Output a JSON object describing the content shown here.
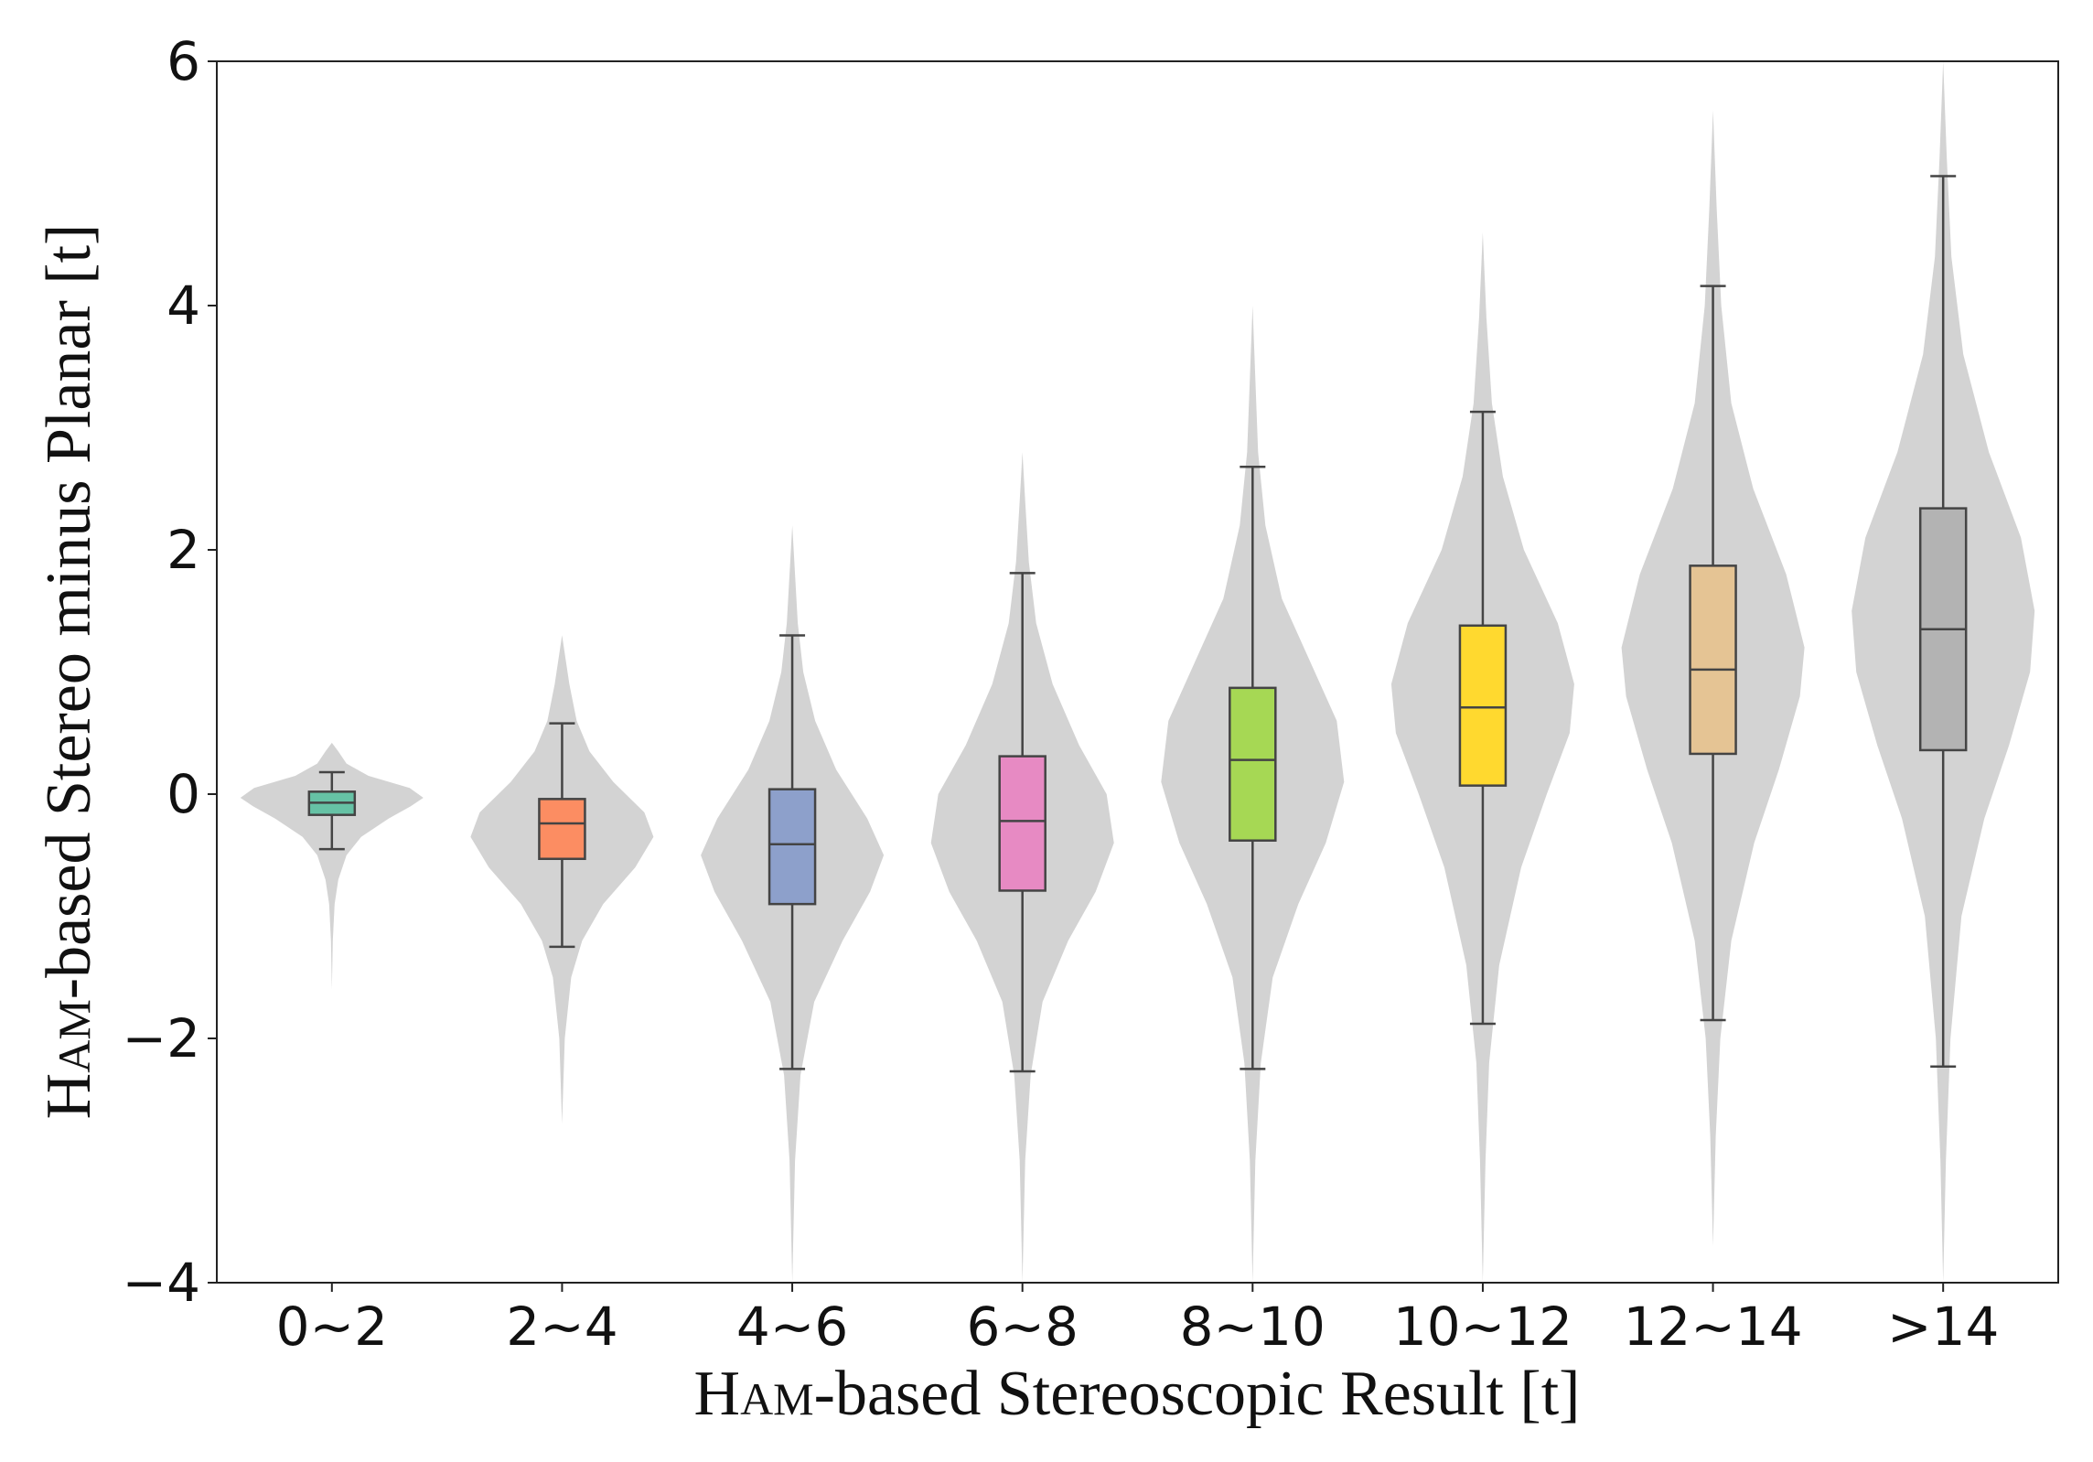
{
  "chart_data": {
    "type": "violin+box",
    "title": "",
    "xlabel": {
      "prefix": "H",
      "smallcaps": "AM",
      "suffix": "-based Stereoscopic Result [t]"
    },
    "ylabel": {
      "prefix": "H",
      "smallcaps": "AM",
      "suffix": "-based Stereo minus Planar [t]"
    },
    "ylim": [
      -4,
      6
    ],
    "yticks": [
      -4,
      -2,
      0,
      2,
      4,
      6
    ],
    "ytick_labels": [
      "−4",
      "−2",
      "0",
      "2",
      "4",
      "6"
    ],
    "grid": false,
    "categories": [
      "0~2",
      "2~4",
      "4~6",
      "6~8",
      "8~10",
      "10~12",
      "12~14",
      ">14"
    ],
    "boxes": [
      {
        "category": "0~2",
        "color": "#66c2a5",
        "whisker_low": -0.45,
        "q1": -0.17,
        "median": -0.07,
        "q3": 0.02,
        "whisker_high": 0.18
      },
      {
        "category": "2~4",
        "color": "#fc8d62",
        "whisker_low": -1.25,
        "q1": -0.53,
        "median": -0.24,
        "q3": -0.04,
        "whisker_high": 0.58
      },
      {
        "category": "4~6",
        "color": "#8da0cb",
        "whisker_low": -2.25,
        "q1": -0.9,
        "median": -0.41,
        "q3": 0.04,
        "whisker_high": 1.3
      },
      {
        "category": "6~8",
        "color": "#e78ac3",
        "whisker_low": -2.27,
        "q1": -0.79,
        "median": -0.22,
        "q3": 0.31,
        "whisker_high": 1.81
      },
      {
        "category": "8~10",
        "color": "#a6d854",
        "whisker_low": -2.25,
        "q1": -0.38,
        "median": 0.28,
        "q3": 0.87,
        "whisker_high": 2.68
      },
      {
        "category": "10~12",
        "color": "#ffd92f",
        "whisker_low": -1.88,
        "q1": 0.07,
        "median": 0.71,
        "q3": 1.38,
        "whisker_high": 3.13
      },
      {
        "category": "12~14",
        "color": "#e5c494",
        "whisker_low": -1.85,
        "q1": 0.33,
        "median": 1.02,
        "q3": 1.87,
        "whisker_high": 4.16
      },
      {
        "category": ">14",
        "color": "#b3b3b3",
        "whisker_low": -2.23,
        "q1": 0.36,
        "median": 1.35,
        "q3": 2.34,
        "whisker_high": 5.06
      }
    ],
    "violins": [
      {
        "category": "0~2",
        "color": "#d3d3d3",
        "min": -1.6,
        "max": 0.42,
        "shape": [
          [
            -1.6,
            0
          ],
          [
            -1.2,
            0.01
          ],
          [
            -0.9,
            0.03
          ],
          [
            -0.7,
            0.07
          ],
          [
            -0.5,
            0.16
          ],
          [
            -0.35,
            0.32
          ],
          [
            -0.2,
            0.62
          ],
          [
            -0.1,
            0.86
          ],
          [
            -0.03,
            1.0
          ],
          [
            0.05,
            0.85
          ],
          [
            0.15,
            0.4
          ],
          [
            0.25,
            0.16
          ],
          [
            0.35,
            0.07
          ],
          [
            0.42,
            0
          ]
        ]
      },
      {
        "category": "2~4",
        "color": "#d3d3d3",
        "min": -2.7,
        "max": 1.3,
        "shape": [
          [
            -2.7,
            0
          ],
          [
            -2.0,
            0.03
          ],
          [
            -1.5,
            0.1
          ],
          [
            -1.2,
            0.22
          ],
          [
            -0.9,
            0.45
          ],
          [
            -0.6,
            0.8
          ],
          [
            -0.35,
            1.0
          ],
          [
            -0.15,
            0.9
          ],
          [
            0.1,
            0.56
          ],
          [
            0.35,
            0.3
          ],
          [
            0.6,
            0.16
          ],
          [
            0.9,
            0.08
          ],
          [
            1.1,
            0.04
          ],
          [
            1.3,
            0
          ]
        ]
      },
      {
        "category": "4~6",
        "color": "#d3d3d3",
        "min": -4.0,
        "max": 2.2,
        "shape": [
          [
            -4.0,
            0
          ],
          [
            -3.0,
            0.03
          ],
          [
            -2.3,
            0.09
          ],
          [
            -1.7,
            0.24
          ],
          [
            -1.2,
            0.55
          ],
          [
            -0.8,
            0.85
          ],
          [
            -0.5,
            1.0
          ],
          [
            -0.2,
            0.82
          ],
          [
            0.2,
            0.48
          ],
          [
            0.6,
            0.25
          ],
          [
            1.0,
            0.12
          ],
          [
            1.4,
            0.06
          ],
          [
            1.8,
            0.03
          ],
          [
            2.2,
            0
          ]
        ]
      },
      {
        "category": "6~8",
        "color": "#d3d3d3",
        "min": -4.0,
        "max": 2.8,
        "shape": [
          [
            -4.0,
            0
          ],
          [
            -3.0,
            0.03
          ],
          [
            -2.3,
            0.09
          ],
          [
            -1.7,
            0.22
          ],
          [
            -1.2,
            0.5
          ],
          [
            -0.8,
            0.8
          ],
          [
            -0.4,
            1.0
          ],
          [
            0.0,
            0.92
          ],
          [
            0.4,
            0.62
          ],
          [
            0.9,
            0.33
          ],
          [
            1.4,
            0.15
          ],
          [
            1.9,
            0.07
          ],
          [
            2.4,
            0.03
          ],
          [
            2.8,
            0
          ]
        ]
      },
      {
        "category": "8~10",
        "color": "#d3d3d3",
        "min": -4.0,
        "max": 4.0,
        "shape": [
          [
            -4.0,
            0
          ],
          [
            -3.0,
            0.03
          ],
          [
            -2.2,
            0.09
          ],
          [
            -1.5,
            0.22
          ],
          [
            -0.9,
            0.5
          ],
          [
            -0.4,
            0.8
          ],
          [
            0.1,
            1.0
          ],
          [
            0.6,
            0.92
          ],
          [
            1.1,
            0.62
          ],
          [
            1.6,
            0.32
          ],
          [
            2.2,
            0.14
          ],
          [
            2.8,
            0.06
          ],
          [
            3.4,
            0.03
          ],
          [
            4.0,
            0
          ]
        ]
      },
      {
        "category": "10~12",
        "color": "#d3d3d3",
        "min": -4.0,
        "max": 4.6,
        "shape": [
          [
            -4.0,
            0
          ],
          [
            -3.0,
            0.03
          ],
          [
            -2.2,
            0.07
          ],
          [
            -1.4,
            0.18
          ],
          [
            -0.6,
            0.42
          ],
          [
            0.0,
            0.7
          ],
          [
            0.5,
            0.95
          ],
          [
            0.9,
            1.0
          ],
          [
            1.4,
            0.82
          ],
          [
            2.0,
            0.45
          ],
          [
            2.6,
            0.22
          ],
          [
            3.2,
            0.1
          ],
          [
            3.9,
            0.04
          ],
          [
            4.6,
            0
          ]
        ]
      },
      {
        "category": "12~14",
        "color": "#d3d3d3",
        "min": -3.7,
        "max": 5.6,
        "shape": [
          [
            -3.7,
            0
          ],
          [
            -2.8,
            0.03
          ],
          [
            -2.0,
            0.08
          ],
          [
            -1.2,
            0.2
          ],
          [
            -0.4,
            0.45
          ],
          [
            0.2,
            0.72
          ],
          [
            0.8,
            0.95
          ],
          [
            1.2,
            1.0
          ],
          [
            1.8,
            0.8
          ],
          [
            2.5,
            0.44
          ],
          [
            3.2,
            0.2
          ],
          [
            4.0,
            0.09
          ],
          [
            4.8,
            0.04
          ],
          [
            5.6,
            0
          ]
        ]
      },
      {
        "category": ">14",
        "color": "#d3d3d3",
        "min": -4.0,
        "max": 6.0,
        "shape": [
          [
            -4.0,
            0
          ],
          [
            -3.0,
            0.03
          ],
          [
            -2.0,
            0.08
          ],
          [
            -1.0,
            0.2
          ],
          [
            -0.2,
            0.45
          ],
          [
            0.4,
            0.72
          ],
          [
            1.0,
            0.95
          ],
          [
            1.5,
            1.0
          ],
          [
            2.1,
            0.85
          ],
          [
            2.8,
            0.5
          ],
          [
            3.6,
            0.22
          ],
          [
            4.4,
            0.09
          ],
          [
            5.2,
            0.04
          ],
          [
            6.0,
            0
          ]
        ]
      }
    ]
  }
}
